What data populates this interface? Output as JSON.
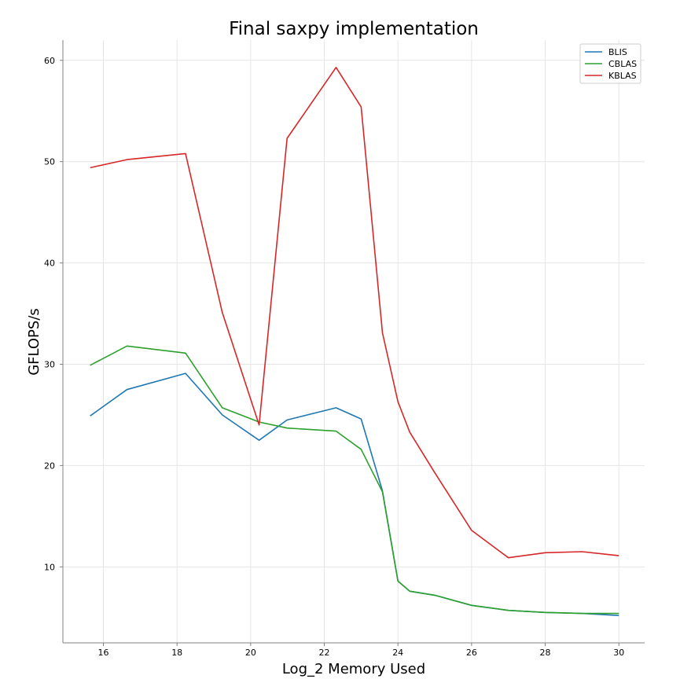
{
  "chart_data": {
    "type": "line",
    "title": "Final saxpy implementation",
    "xlabel": "Log_2 Memory Used",
    "ylabel": "GFLOPS/s",
    "xlim": [
      14.9,
      30.7
    ],
    "ylim": [
      2.5,
      62
    ],
    "xticks": [
      16,
      18,
      20,
      22,
      24,
      26,
      28,
      30
    ],
    "yticks": [
      10,
      20,
      30,
      40,
      50,
      60
    ],
    "grid": true,
    "legend_position": "top-right",
    "series": [
      {
        "name": "BLIS",
        "color": "#1f77b4",
        "x": [
          15.64,
          16.64,
          18.23,
          19.23,
          20.23,
          20.99,
          22.32,
          23.0,
          23.58,
          24.0,
          24.32,
          25.0,
          26.0,
          27.0,
          28.0,
          29.0,
          30.0
        ],
        "y": [
          24.9,
          27.5,
          29.1,
          25.0,
          22.5,
          24.5,
          25.7,
          24.6,
          17.5,
          8.6,
          7.6,
          7.2,
          6.2,
          5.7,
          5.5,
          5.4,
          5.2
        ]
      },
      {
        "name": "CBLAS",
        "color": "#2ca02c",
        "x": [
          15.64,
          16.64,
          18.23,
          19.23,
          20.23,
          20.99,
          22.32,
          23.0,
          23.58,
          24.0,
          24.32,
          25.0,
          26.0,
          27.0,
          28.0,
          29.0,
          30.0
        ],
        "y": [
          29.9,
          31.8,
          31.1,
          25.7,
          24.3,
          23.7,
          23.4,
          21.6,
          17.4,
          8.6,
          7.6,
          7.2,
          6.2,
          5.7,
          5.5,
          5.4,
          5.4
        ]
      },
      {
        "name": "KBLAS",
        "color": "#d62728",
        "x": [
          15.64,
          16.64,
          18.23,
          19.23,
          20.23,
          20.99,
          22.32,
          23.0,
          23.58,
          24.0,
          24.32,
          25.0,
          26.0,
          27.0,
          28.0,
          29.0,
          30.0
        ],
        "y": [
          49.4,
          50.2,
          50.8,
          35.1,
          24.0,
          52.3,
          59.3,
          55.4,
          33.1,
          26.3,
          23.3,
          19.3,
          13.6,
          10.9,
          11.4,
          11.5,
          11.1
        ]
      }
    ]
  }
}
